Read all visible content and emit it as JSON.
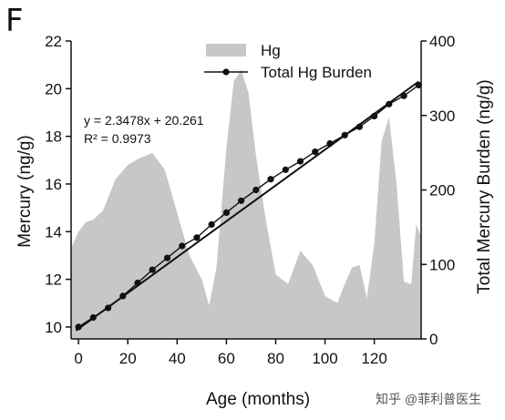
{
  "panel_label": "F",
  "watermark": "知乎 @菲利普医生",
  "colors": {
    "area_fill": "#c8c6c6",
    "line": "#111111",
    "axis": "#111111"
  },
  "chart_data": {
    "type": "area",
    "xlabel": "Age (months)",
    "ylabel_left": "Mercury (ng/g)",
    "ylabel_right": "Total Mercury Burden (ng/g)",
    "xlim": [
      -3,
      139
    ],
    "ylim_left": [
      9.5,
      22
    ],
    "ylim_right": [
      0,
      400
    ],
    "x_ticks": [
      0,
      20,
      40,
      60,
      80,
      100,
      120
    ],
    "y_left_ticks": [
      10,
      12,
      14,
      16,
      18,
      20,
      22
    ],
    "y_right_ticks": [
      0,
      100,
      200,
      300,
      400
    ],
    "legend": {
      "placement": "top-center",
      "entries": [
        "Hg",
        "Total Hg Burden"
      ]
    },
    "annotation": {
      "equation": "y = 2.3478x + 20.261",
      "r2": "R² = 0.9973"
    },
    "series": [
      {
        "name": "Hg",
        "type": "area",
        "axis": "left",
        "x": [
          -3,
          0,
          3,
          6,
          10,
          15,
          20,
          25,
          30,
          35,
          40,
          45,
          50,
          53,
          56,
          60,
          63,
          66,
          69,
          72,
          76,
          80,
          85,
          90,
          95,
          100,
          105,
          108,
          111,
          114,
          117,
          120,
          123,
          126,
          129,
          132,
          135,
          137,
          139
        ],
        "y": [
          13.3,
          14.0,
          14.4,
          14.5,
          14.9,
          16.2,
          16.8,
          17.1,
          17.3,
          16.6,
          14.8,
          13.0,
          12.0,
          10.9,
          12.5,
          17.5,
          20.3,
          20.8,
          19.8,
          17.2,
          14.5,
          12.2,
          11.8,
          13.2,
          12.6,
          11.3,
          11.0,
          11.8,
          12.5,
          12.6,
          11.2,
          13.5,
          17.8,
          18.8,
          16.0,
          11.9,
          11.8,
          14.3,
          13.8
        ]
      },
      {
        "name": "Total Hg Burden",
        "type": "line-markers",
        "axis": "left",
        "x": [
          0,
          6,
          12,
          18,
          24,
          30,
          36,
          42,
          48,
          54,
          60,
          66,
          72,
          78,
          84,
          90,
          96,
          102,
          108,
          114,
          120,
          126,
          132,
          138
        ],
        "y": [
          10.0,
          10.4,
          10.8,
          11.3,
          11.85,
          12.4,
          12.9,
          13.4,
          13.75,
          14.3,
          14.8,
          15.3,
          15.75,
          16.2,
          16.6,
          16.95,
          17.35,
          17.7,
          18.05,
          18.4,
          18.85,
          19.35,
          19.7,
          20.15
        ]
      },
      {
        "name": "fit",
        "type": "line",
        "axis": "left",
        "x": [
          -1,
          138
        ],
        "y": [
          9.85,
          20.3
        ]
      }
    ]
  }
}
